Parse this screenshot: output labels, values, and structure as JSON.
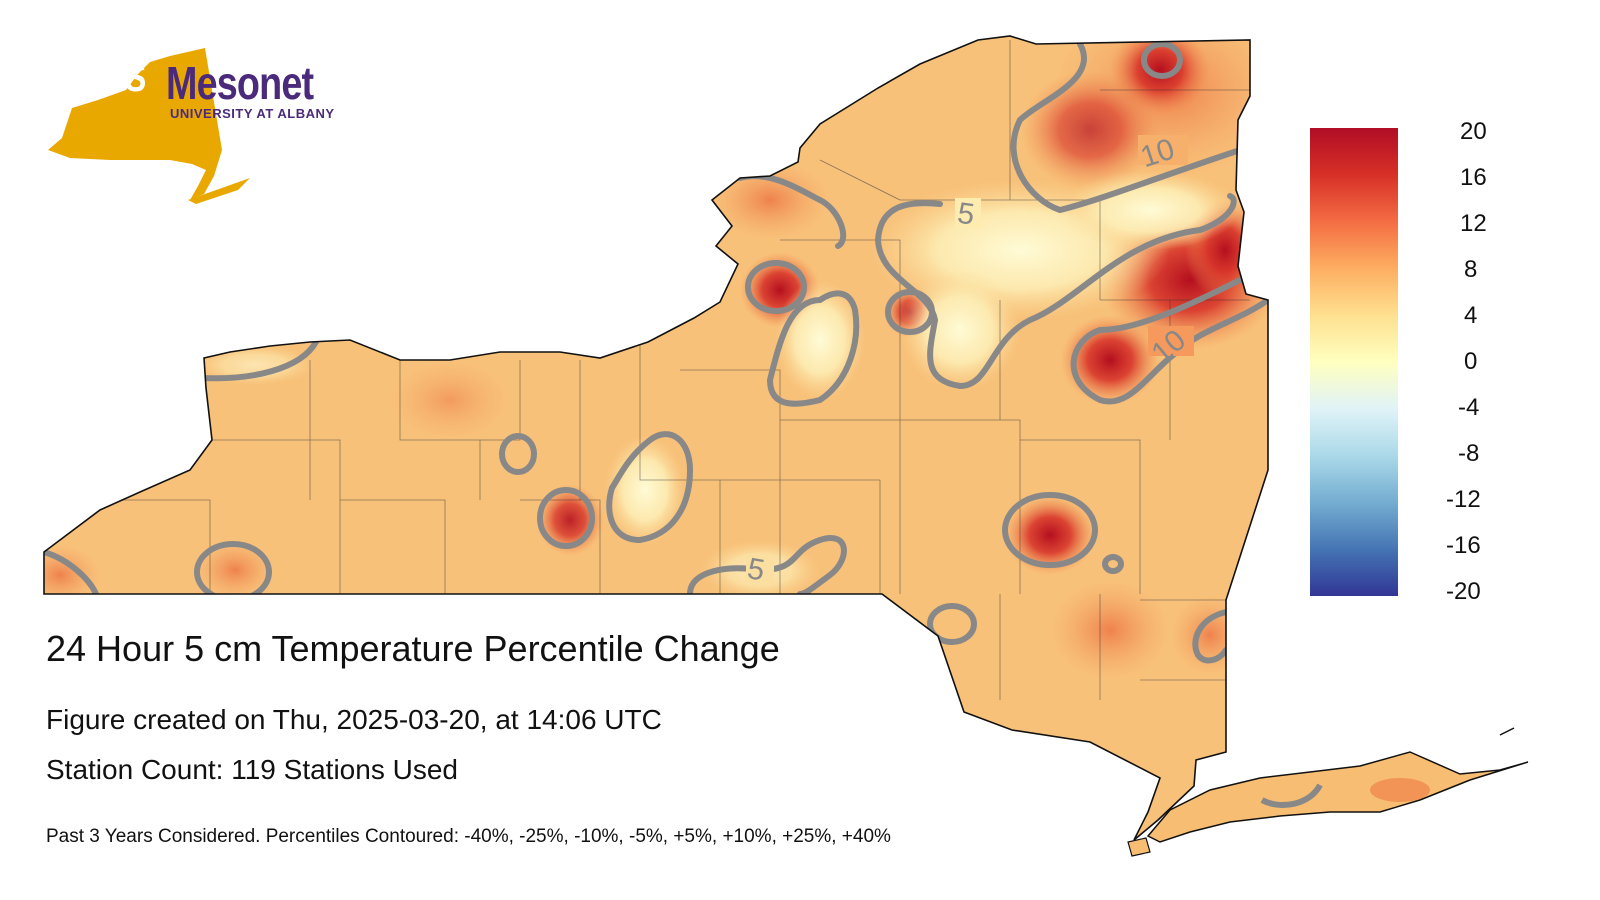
{
  "logo": {
    "nys": "NYS",
    "mesonet": "Mesonet",
    "subtitle": "UNIVERSITY AT ALBANY",
    "state_color": "#e8a800",
    "brand_color": "#4b2a7b"
  },
  "title": "24 Hour 5 cm Temperature Percentile Change",
  "created": "Figure created on Thu, 2025-03-20, at 14:06 UTC",
  "stations": "Station Count: 119 Stations Used",
  "footnote": "Past 3 Years Considered. Percentiles Contoured: -40%, -25%, -10%, -5%, +5%, +10%, +25%, +40%",
  "colorbar": {
    "ticks": [
      "20",
      "16",
      "12",
      "8",
      "4",
      "0",
      "-4",
      "-8",
      "-12",
      "-16",
      "-20"
    ],
    "min": -20,
    "max": 20,
    "stops": [
      "#b10d26",
      "#d73027",
      "#f46d43",
      "#fdae61",
      "#fee090",
      "#ffffbf",
      "#e0f3f8",
      "#abd9e9",
      "#74add1",
      "#4575b4",
      "#313695"
    ]
  },
  "contour_labels": [
    "5",
    "10",
    "10",
    "5"
  ],
  "contour_color": "#888888"
}
